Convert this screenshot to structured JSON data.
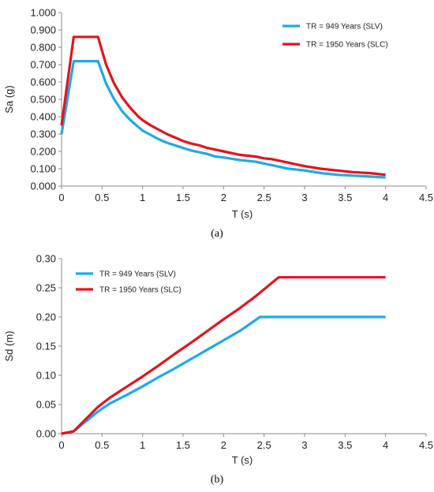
{
  "colors": {
    "slv": "#1eaae6",
    "slc": "#e1141e",
    "axis": "#888888"
  },
  "chart_data": [
    {
      "type": "line",
      "panel_label": "(a)",
      "xlabel": "T (s)",
      "ylabel": "Sa (g)",
      "xlim": [
        0,
        4.5
      ],
      "ylim": [
        0,
        1.0
      ],
      "x_ticks": [
        0,
        0.5,
        1,
        1.5,
        2,
        2.5,
        3,
        3.5,
        4,
        4.5
      ],
      "x_tick_labels": [
        "0",
        "0.5",
        "1",
        "1.5",
        "2",
        "2.5",
        "3",
        "3.5",
        "4",
        "4.5"
      ],
      "y_ticks": [
        0,
        0.1,
        0.2,
        0.3,
        0.4,
        0.5,
        0.6,
        0.7,
        0.8,
        0.9,
        1.0
      ],
      "y_tick_labels": [
        "0.000",
        "0.100",
        "0.200",
        "0.300",
        "0.400",
        "0.500",
        "0.600",
        "0.700",
        "0.800",
        "0.900",
        "1.000"
      ],
      "grid": false,
      "legend": "top-right",
      "series": [
        {
          "name": "TR = 949 Years (SLV)",
          "color": "#1eaae6",
          "x": [
            0,
            0.15,
            0.45,
            0.55,
            0.65,
            0.75,
            0.85,
            0.95,
            1.0,
            1.1,
            1.2,
            1.3,
            1.4,
            1.5,
            1.6,
            1.7,
            1.8,
            1.9,
            2.0,
            2.2,
            2.4,
            2.5,
            2.6,
            2.8,
            3.0,
            3.2,
            3.4,
            3.6,
            3.8,
            4.0
          ],
          "y": [
            0.3,
            0.72,
            0.72,
            0.59,
            0.5,
            0.43,
            0.38,
            0.34,
            0.32,
            0.295,
            0.27,
            0.25,
            0.235,
            0.22,
            0.205,
            0.195,
            0.185,
            0.17,
            0.165,
            0.15,
            0.14,
            0.13,
            0.12,
            0.1,
            0.09,
            0.075,
            0.065,
            0.06,
            0.055,
            0.05
          ]
        },
        {
          "name": "TR = 1950 Years (SLC)",
          "color": "#e1141e",
          "x": [
            0,
            0.15,
            0.45,
            0.55,
            0.65,
            0.75,
            0.85,
            0.95,
            1.0,
            1.1,
            1.2,
            1.3,
            1.4,
            1.5,
            1.6,
            1.7,
            1.8,
            1.9,
            2.0,
            2.2,
            2.4,
            2.5,
            2.6,
            2.8,
            3.0,
            3.2,
            3.4,
            3.6,
            3.8,
            4.0
          ],
          "y": [
            0.35,
            0.86,
            0.86,
            0.7,
            0.59,
            0.51,
            0.45,
            0.4,
            0.38,
            0.35,
            0.325,
            0.3,
            0.28,
            0.26,
            0.245,
            0.235,
            0.22,
            0.21,
            0.2,
            0.18,
            0.17,
            0.16,
            0.155,
            0.135,
            0.115,
            0.1,
            0.09,
            0.08,
            0.075,
            0.065
          ]
        }
      ]
    },
    {
      "type": "line",
      "panel_label": "(b)",
      "xlabel": "T (s)",
      "ylabel": "Sd (m)",
      "xlim": [
        0,
        4.5
      ],
      "ylim": [
        0,
        0.3
      ],
      "x_ticks": [
        0,
        0.5,
        1,
        1.5,
        2,
        2.5,
        3,
        3.5,
        4,
        4.5
      ],
      "x_tick_labels": [
        "0",
        "0.5",
        "1",
        "1.5",
        "2",
        "2.5",
        "3",
        "3.5",
        "4",
        "4.5"
      ],
      "y_ticks": [
        0,
        0.05,
        0.1,
        0.15,
        0.2,
        0.25,
        0.3
      ],
      "y_tick_labels": [
        "0.00",
        "0.05",
        "0.10",
        "0.15",
        "0.20",
        "0.25",
        "0.30"
      ],
      "grid": false,
      "legend": "top-left",
      "series": [
        {
          "name": "TR = 949 Years (SLV)",
          "color": "#1eaae6",
          "x": [
            0,
            0.15,
            0.45,
            0.6,
            0.8,
            1.0,
            1.2,
            1.4,
            1.6,
            1.8,
            2.0,
            2.2,
            2.45,
            3.0,
            3.5,
            4.0
          ],
          "y": [
            0,
            0.004,
            0.038,
            0.052,
            0.066,
            0.081,
            0.097,
            0.112,
            0.128,
            0.144,
            0.16,
            0.176,
            0.2,
            0.2,
            0.2,
            0.2
          ]
        },
        {
          "name": "TR = 1950 Years (SLC)",
          "color": "#e1141e",
          "x": [
            0,
            0.15,
            0.45,
            0.6,
            0.8,
            1.0,
            1.2,
            1.4,
            1.6,
            1.8,
            2.0,
            2.2,
            2.4,
            2.68,
            3.0,
            3.5,
            4.0
          ],
          "y": [
            0,
            0.004,
            0.046,
            0.062,
            0.08,
            0.098,
            0.117,
            0.137,
            0.156,
            0.176,
            0.196,
            0.215,
            0.236,
            0.268,
            0.268,
            0.268,
            0.268
          ]
        }
      ]
    }
  ]
}
